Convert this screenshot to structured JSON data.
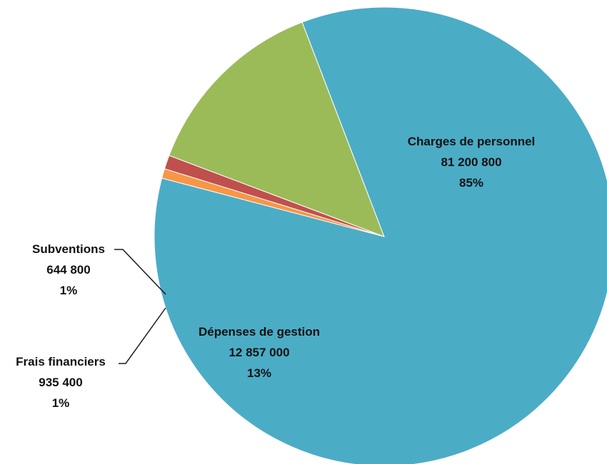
{
  "chart_data": {
    "type": "pie",
    "slices": [
      {
        "name": "Charges de personnel",
        "value": 81200800,
        "value_label": "81 200 800",
        "pct_label": "85%",
        "color": "#4BACC6"
      },
      {
        "name": "Dépenses de gestion",
        "value": 12857000,
        "value_label": "12 857 000",
        "pct_label": "13%",
        "color": "#9BBB59"
      },
      {
        "name": "Frais financiers",
        "value": 935400,
        "value_label": "935 400",
        "pct_label": "1%",
        "color": "#C0504D"
      },
      {
        "name": "Subventions",
        "value": 644800,
        "value_label": "644 800",
        "pct_label": "1%",
        "color": "#F79646"
      }
    ],
    "legend": "none",
    "data_labels": "name, value, percent"
  }
}
